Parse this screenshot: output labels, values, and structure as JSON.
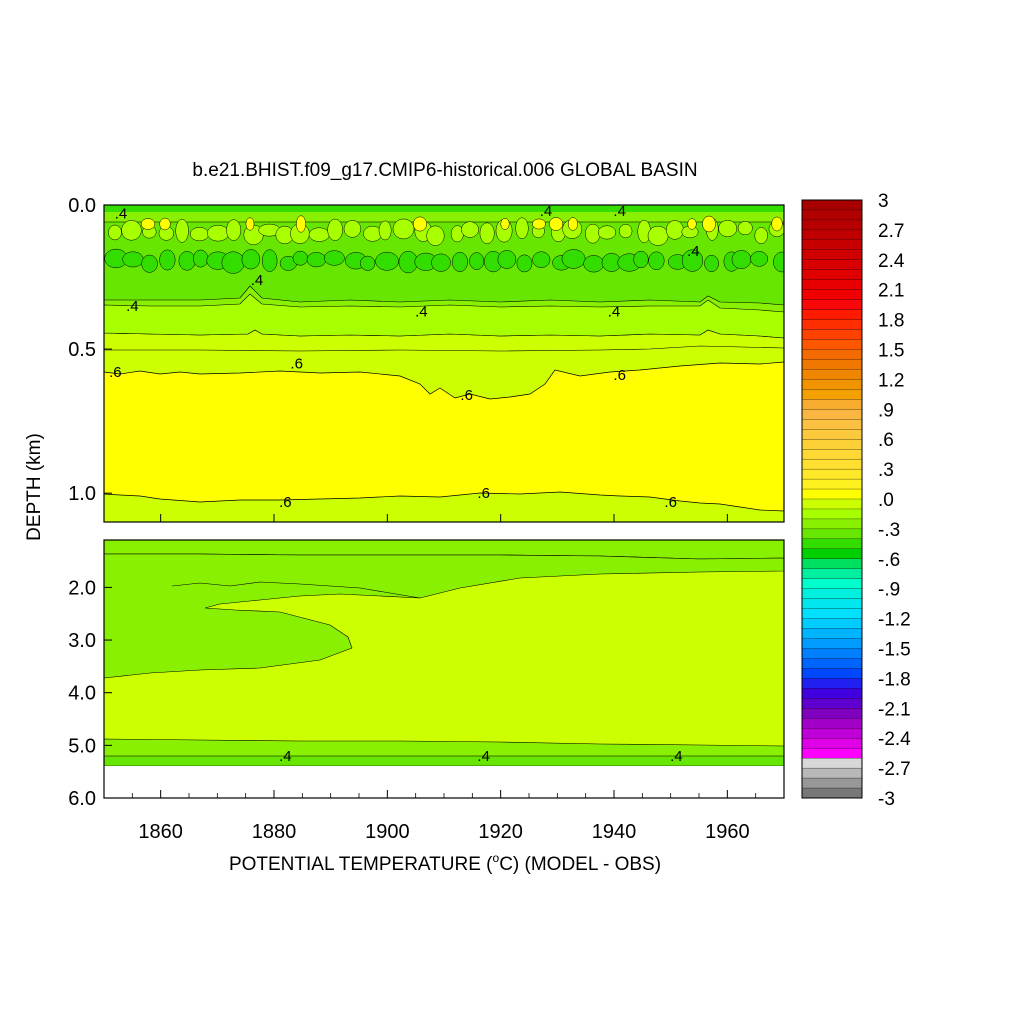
{
  "chart_data": {
    "type": "heatmap",
    "title": "b.e21.BHIST.f09_g17.CMIP6-historical.006 GLOBAL BASIN",
    "xlabel_main": "POTENTIAL TEMPERATURE (",
    "xlabel_sup": "o",
    "xlabel_tail": "C) (MODEL - OBS)",
    "ylabel": "DEPTH (km)",
    "x_range": [
      1850,
      1970
    ],
    "x_ticks": [
      1860,
      1880,
      1900,
      1920,
      1940,
      1960
    ],
    "x_tick_labels": [
      "1860",
      "1880",
      "1900",
      "1920",
      "1940",
      "1960"
    ],
    "upper_panel": {
      "y_range_km": [
        0.0,
        1.1
      ],
      "y_ticks": [
        0.0,
        0.5,
        1.0
      ],
      "y_tick_labels": [
        "0.0",
        "0.5",
        "1.0"
      ]
    },
    "lower_panel": {
      "y_range_km": [
        1.1,
        6.0
      ],
      "y_ticks": [
        2.0,
        3.0,
        4.0,
        5.0,
        6.0
      ],
      "y_tick_labels": [
        "2.0",
        "3.0",
        "4.0",
        "5.0",
        "6.0"
      ]
    },
    "contour_labels": [
      {
        "text": ".4",
        "panel": "upper",
        "x": 1853,
        "depth": 0.03
      },
      {
        "text": ".4",
        "panel": "upper",
        "x": 1928,
        "depth": 0.02
      },
      {
        "text": ".4",
        "panel": "upper",
        "x": 1941,
        "depth": 0.02
      },
      {
        "text": ".4",
        "panel": "upper",
        "x": 1954,
        "depth": 0.16
      },
      {
        "text": ".4",
        "panel": "upper",
        "x": 1877,
        "depth": 0.26
      },
      {
        "text": ".4",
        "panel": "upper",
        "x": 1855,
        "depth": 0.35
      },
      {
        "text": ".4",
        "panel": "upper",
        "x": 1906,
        "depth": 0.37
      },
      {
        "text": ".4",
        "panel": "upper",
        "x": 1940,
        "depth": 0.37
      },
      {
        "text": ".6",
        "panel": "upper",
        "x": 1852,
        "depth": 0.58
      },
      {
        "text": ".6",
        "panel": "upper",
        "x": 1884,
        "depth": 0.55
      },
      {
        "text": ".6",
        "panel": "upper",
        "x": 1914,
        "depth": 0.66
      },
      {
        "text": ".6",
        "panel": "upper",
        "x": 1941,
        "depth": 0.59
      },
      {
        "text": ".6",
        "panel": "upper",
        "x": 1882,
        "depth": 1.03
      },
      {
        "text": ".6",
        "panel": "upper",
        "x": 1917,
        "depth": 1.0
      },
      {
        "text": ".6",
        "panel": "upper",
        "x": 1950,
        "depth": 1.03
      },
      {
        "text": ".4",
        "panel": "lower",
        "x": 1882,
        "depth": 5.2
      },
      {
        "text": ".4",
        "panel": "lower",
        "x": 1917,
        "depth": 5.2
      },
      {
        "text": ".4",
        "panel": "lower",
        "x": 1951,
        "depth": 5.2
      }
    ],
    "colorbar": {
      "labels": [
        "3",
        "2.7",
        "2.4",
        "2.1",
        "1.8",
        "1.5",
        "1.2",
        ".9",
        ".6",
        ".3",
        ".0",
        "-.3",
        "-.6",
        "-.9",
        "-1.2",
        "-1.5",
        "-1.8",
        "-2.1",
        "-2.4",
        "-2.7",
        "-3"
      ],
      "min": -3,
      "max": 3,
      "step": 0.1,
      "colors_top_to_bottom": [
        "#a80000",
        "#b00000",
        "#b80000",
        "#c00000",
        "#c80000",
        "#d00000",
        "#d80000",
        "#e00000",
        "#e80000",
        "#f00000",
        "#f80808",
        "#ff1a00",
        "#ff2e00",
        "#ff4200",
        "#ff5600",
        "#f26a00",
        "#f07800",
        "#f08600",
        "#f29400",
        "#f4a000",
        "#f7ac30",
        "#f9b640",
        "#fbc040",
        "#fcc83c",
        "#fdd038",
        "#fed834",
        "#ffe030",
        "#ffe828",
        "#fff020",
        "#ffff00",
        "#ccff00",
        "#a8ff00",
        "#88f000",
        "#66e600",
        "#33dd00",
        "#00d000",
        "#00e060",
        "#00f0a0",
        "#00ffcc",
        "#00f0e0",
        "#00e8ee",
        "#00e0ff",
        "#00ccff",
        "#00b4ff",
        "#009cff",
        "#0080ff",
        "#0064ff",
        "#0048ff",
        "#2020f0",
        "#4000e0",
        "#6000d0",
        "#8000c0",
        "#a000c8",
        "#c000d8",
        "#e000e8",
        "#ff00ff",
        "#d8d8d8",
        "#b8b8b8",
        "#989898",
        "#787878"
      ]
    },
    "fill_colors": {
      "top_band": "#33dd00",
      "green_0_3": "#66e600",
      "green_0_4": "#88f000",
      "yellowgreen_0_5": "#a8ff00",
      "yellowgreen_0_6": "#ccff00",
      "yellow_0_7": "#ffff00",
      "missing": "#ffffff"
    }
  }
}
